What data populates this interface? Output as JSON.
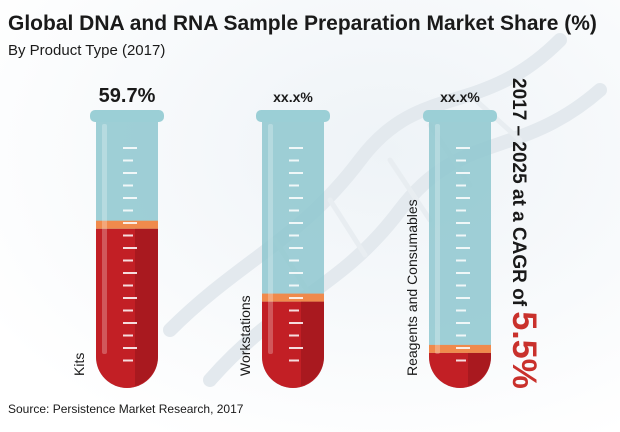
{
  "title": "Global DNA and RNA Sample Preparation Market Share (%)",
  "subtitle": "By Product Type (2017)",
  "source": "Source: Persistence Market Research, 2017",
  "side_note": {
    "text": "2017 – 2025 at a CAGR of ",
    "value": "5.5%"
  },
  "colors": {
    "glass": "#8ec7cf",
    "liquid": "#c21f25",
    "liquid_dark": "#9e171c",
    "meniscus": "#f08a4c"
  },
  "chart_data": {
    "type": "bar",
    "categories": [
      "Kits",
      "Workstations",
      "Reagents and Consumables"
    ],
    "values": [
      59.7,
      null,
      null
    ],
    "data_labels": [
      "59.7%",
      "xx.x%",
      "xx.x%"
    ],
    "fill_fractions": [
      0.59,
      0.32,
      0.13
    ],
    "ylim": [
      0,
      100
    ]
  }
}
